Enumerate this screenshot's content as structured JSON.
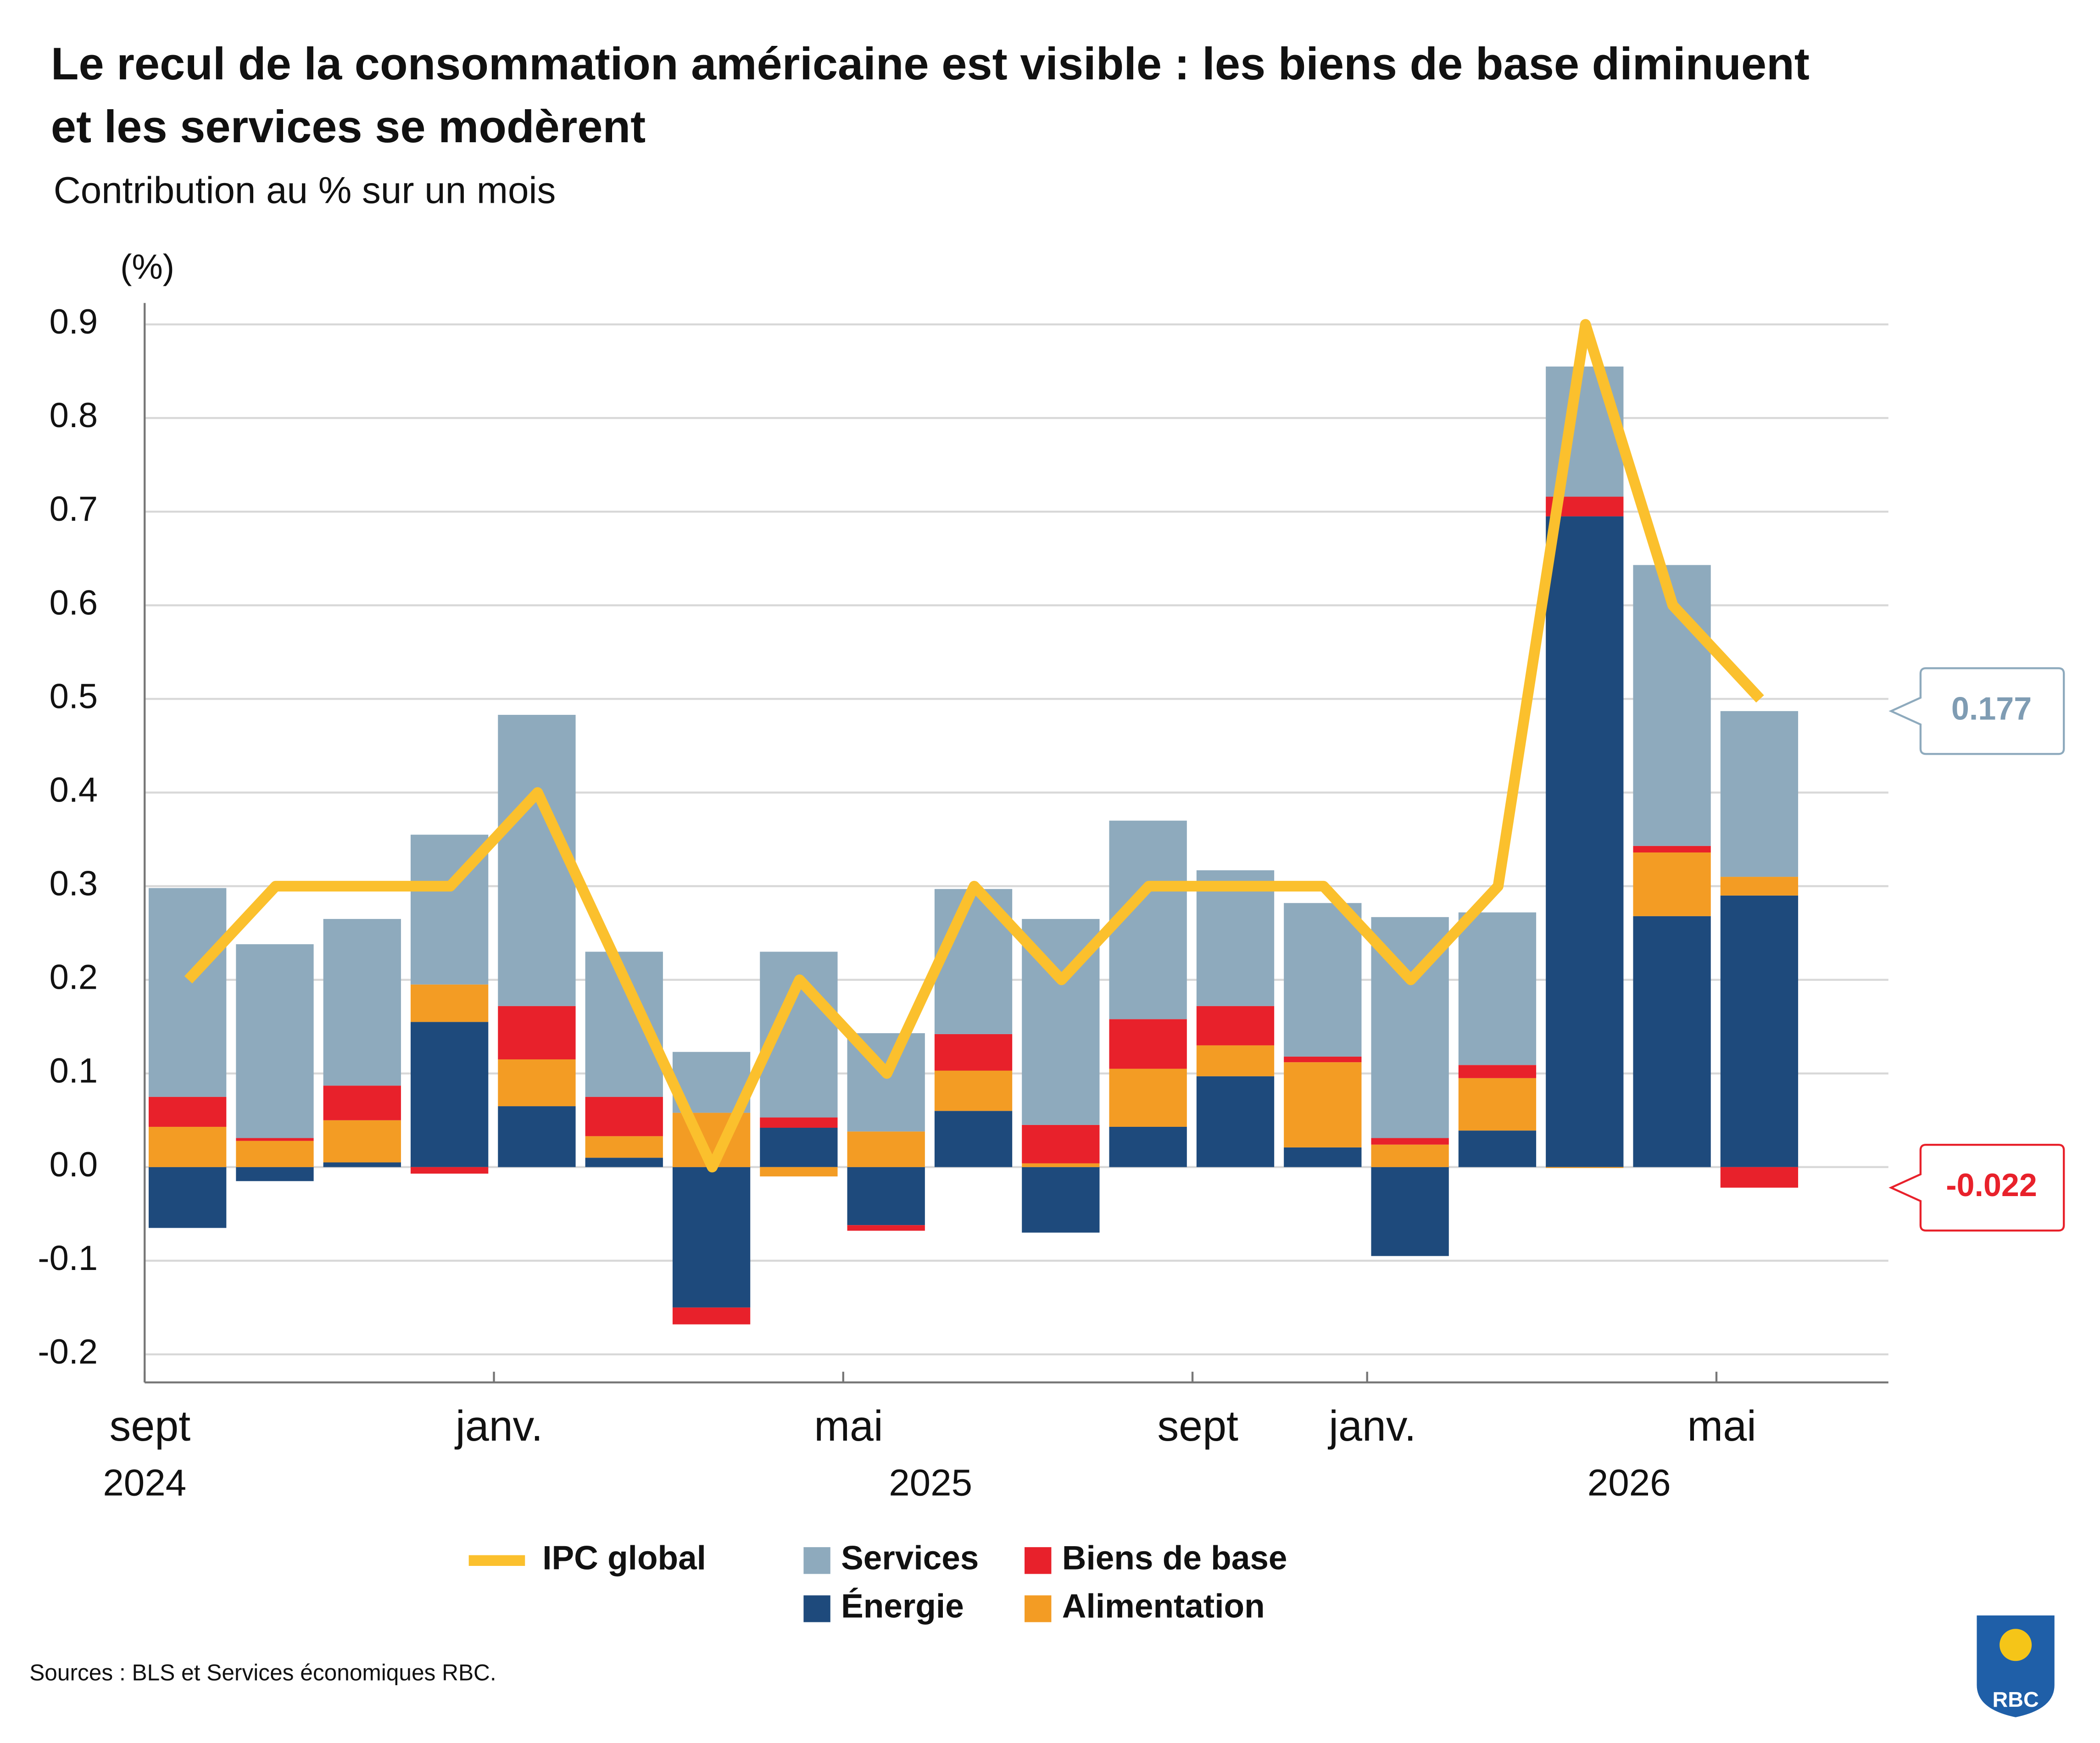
{
  "chart_data": {
    "type": "stacked-bar-line",
    "title": [
      "Le recul de la consommation américaine est visible : les biens de base diminuent",
      "et les services se modèrent"
    ],
    "subtitle": "Contribution au % sur un mois",
    "y_label": "(%)",
    "source": "Sources : BLS et Services économiques RBC.",
    "logo_text": "RBC",
    "categories": [
      "sept",
      null,
      null,
      null,
      "janv.",
      null,
      null,
      null,
      "mai",
      null,
      null,
      null,
      "sept",
      null,
      "janv.",
      null,
      null,
      null,
      "mai"
    ],
    "year_labels": [
      "2024",
      null,
      null,
      null,
      null,
      null,
      null,
      null,
      null,
      "2025",
      null,
      null,
      null,
      null,
      null,
      null,
      null,
      "2026",
      null
    ],
    "ylim": [
      -0.23,
      0.92
    ],
    "yticks": [
      -0.2,
      -0.1,
      {
        "value": 0,
        "label": "0.0"
      },
      0.1,
      0.2,
      0.3,
      0.4,
      0.5,
      0.6,
      0.7,
      0.8,
      0.9
    ],
    "grid": true,
    "series": [
      {
        "name": "IPC global",
        "type": "line",
        "color": "#fbc02d",
        "values": [
          0.2,
          0.3,
          0.3,
          0.3,
          0.4,
          0.2,
          0.0,
          0.2,
          0.1,
          0.3,
          0.2,
          0.3,
          0.3,
          0.3,
          0.2,
          0.3,
          0.9,
          0.6,
          0.5
        ]
      },
      {
        "name": "Services",
        "type": "bar",
        "color": "#8eaabd",
        "values": [
          0.223,
          0.207,
          0.178,
          0.16,
          0.311,
          0.155,
          0.065,
          0.177,
          0.105,
          0.155,
          0.22,
          0.212,
          0.145,
          0.164,
          0.236,
          0.163,
          0.139,
          0.3,
          0.177
        ]
      },
      {
        "name": "Biens de base",
        "type": "bar",
        "color": "#e8212b",
        "values": [
          0.032,
          0.003,
          0.037,
          -0.007,
          0.057,
          0.042,
          -0.018,
          0.011,
          -0.006,
          0.039,
          0.041,
          0.053,
          0.042,
          0.006,
          0.007,
          0.014,
          0.021,
          0.007,
          -0.022
        ]
      },
      {
        "name": "Énergie",
        "type": "bar",
        "color": "#1e4a7c",
        "values": [
          -0.065,
          -0.015,
          0.005,
          0.155,
          0.065,
          0.01,
          -0.15,
          0.042,
          -0.062,
          0.06,
          -0.07,
          0.043,
          0.097,
          0.021,
          -0.095,
          0.039,
          0.695,
          0.268,
          0.29
        ]
      },
      {
        "name": "Alimentation",
        "type": "bar",
        "color": "#f39c24",
        "values": [
          0.043,
          0.028,
          0.045,
          0.04,
          0.05,
          0.023,
          0.058,
          -0.01,
          0.038,
          0.043,
          0.004,
          0.062,
          0.033,
          0.091,
          0.024,
          0.056,
          -0.001,
          0.068,
          0.02
        ]
      }
    ]
  }
}
